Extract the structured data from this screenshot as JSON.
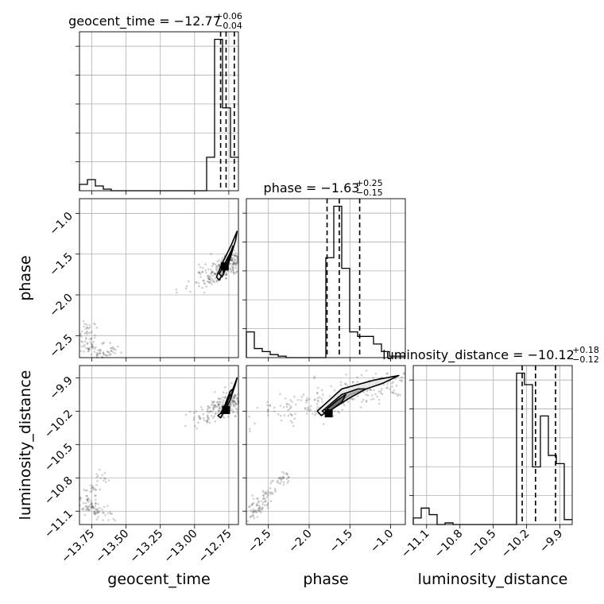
{
  "chart_data": {
    "type": "corner",
    "parameters": [
      "geocent_time",
      "phase",
      "luminosity_distance"
    ],
    "axis_labels": [
      "geocent_time",
      "phase",
      "luminosity_distance"
    ],
    "ranges": {
      "geocent_time": [
        -13.84,
        -12.68
      ],
      "phase": [
        -2.77,
        -0.82
      ],
      "luminosity_distance": [
        -11.22,
        -9.79
      ]
    },
    "ticks": {
      "geocent_time": {
        "values": [
          -13.75,
          -13.5,
          -13.25,
          -13.0,
          -12.75
        ],
        "labels": [
          "−13.75",
          "−13.50",
          "−13.25",
          "−13.00",
          "−12.75"
        ]
      },
      "phase": {
        "values": [
          -2.5,
          -2.0,
          -1.5,
          -1.0
        ],
        "labels": [
          "−2.5",
          "−2.0",
          "−1.5",
          "−1.0"
        ]
      },
      "luminosity_distance": {
        "values": [
          -11.1,
          -10.8,
          -10.5,
          -10.2,
          -9.9
        ],
        "labels": [
          "−11.1",
          "−10.8",
          "−10.5",
          "−10.2",
          "−9.9"
        ]
      }
    },
    "titles": {
      "geocent_time": {
        "text": "geocent_time = −12.77",
        "plus": "+0.06",
        "minus": "−0.04"
      },
      "phase": {
        "text": "phase = −1.63",
        "plus": "+0.25",
        "minus": "−0.15"
      },
      "luminosity_distance": {
        "text": "luminosity_distance = −10.12",
        "plus": "+0.18",
        "minus": "−0.12"
      }
    },
    "quantiles": {
      "geocent_time": [
        -12.81,
        -12.77,
        -12.71
      ],
      "phase": [
        -1.78,
        -1.63,
        -1.38
      ],
      "luminosity_distance": [
        -10.24,
        -10.12,
        -9.94
      ]
    },
    "histograms": {
      "geocent_time": {
        "edges": [
          -13.84,
          -13.782,
          -13.724,
          -13.666,
          -13.608,
          -13.55,
          -13.492,
          -13.434,
          -13.376,
          -13.318,
          -13.26,
          -13.202,
          -13.144,
          -13.086,
          -13.028,
          -12.97,
          -12.912,
          -12.854,
          -12.796,
          -12.738,
          -12.68
        ],
        "counts": [
          4,
          7,
          3,
          1,
          0,
          0,
          0,
          0,
          0,
          0,
          0,
          0,
          0,
          0,
          0,
          0,
          21,
          95,
          52,
          21
        ]
      },
      "phase": {
        "edges": [
          -2.77,
          -2.6725,
          -2.575,
          -2.4775,
          -2.38,
          -2.2825,
          -2.185,
          -2.0875,
          -1.99,
          -1.8925,
          -1.795,
          -1.6975,
          -1.6,
          -1.5025,
          -1.405,
          -1.3075,
          -1.21,
          -1.1125,
          -1.015,
          -0.9175,
          -0.82
        ],
        "counts": [
          17,
          6,
          4,
          2,
          1,
          0,
          0,
          0,
          0,
          0,
          66,
          100,
          59,
          17,
          14,
          14,
          9,
          4,
          1,
          1
        ]
      },
      "luminosity_distance": {
        "edges": [
          -11.22,
          -11.1485,
          -11.077,
          -11.0055,
          -10.934,
          -10.8625,
          -10.791,
          -10.7195,
          -10.648,
          -10.5765,
          -10.505,
          -10.4335,
          -10.362,
          -10.2905,
          -10.219,
          -10.1475,
          -10.076,
          -10.0045,
          -9.933,
          -9.8615,
          -9.79
        ],
        "counts": [
          4,
          10,
          6,
          0,
          1,
          0,
          0,
          0,
          0,
          0,
          0,
          0,
          0,
          92,
          85,
          35,
          66,
          42,
          37,
          3
        ]
      }
    },
    "scatter_clusters": [
      {
        "x": "geocent_time",
        "y": "phase",
        "main": {
          "center": [
            -12.78,
            -1.65
          ],
          "direction": [
            0.7,
            0.45
          ],
          "n": 260,
          "spread_along": 0.11,
          "spread_perp": 0.035
        },
        "tail": [
          [
            -13.8,
            -2.65
          ],
          [
            -13.75,
            -2.6
          ],
          [
            -13.7,
            -2.7
          ],
          [
            -13.65,
            -2.72
          ],
          [
            -13.6,
            -2.68
          ],
          [
            -13.78,
            -2.4
          ],
          [
            -13.76,
            -2.5
          ]
        ]
      },
      {
        "x": "geocent_time",
        "y": "luminosity_distance",
        "main": {
          "center": [
            -12.76,
            -10.15
          ],
          "direction": [
            0.75,
            0.3
          ],
          "n": 260,
          "spread_along": 0.11,
          "spread_perp": 0.035
        },
        "tail": [
          [
            -13.8,
            -11.05
          ],
          [
            -13.75,
            -11.08
          ],
          [
            -13.7,
            -11.1
          ],
          [
            -13.65,
            -11.12
          ],
          [
            -13.75,
            -10.9
          ],
          [
            -13.68,
            -10.8
          ],
          [
            -13.78,
            -11.0
          ]
        ]
      },
      {
        "x": "phase",
        "y": "luminosity_distance",
        "main": {
          "center": [
            -1.55,
            -10.05
          ],
          "direction": [
            1.0,
            0.27
          ],
          "n": 300,
          "spread_along": 0.35,
          "spread_perp": 0.05
        },
        "tail": [
          [
            -2.7,
            -11.1
          ],
          [
            -2.6,
            -11.05
          ],
          [
            -2.5,
            -10.95
          ],
          [
            -2.4,
            -10.85
          ],
          [
            -2.3,
            -10.8
          ],
          [
            -2.65,
            -11.12
          ],
          [
            -2.55,
            -11.0
          ]
        ]
      }
    ],
    "contours": [
      {
        "x": "geocent_time",
        "y": "phase",
        "levels": [
          [
            [
              -12.82,
              -1.82
            ],
            [
              -12.75,
              -1.6
            ],
            [
              -12.7,
              -1.33
            ],
            [
              -12.69,
              -1.22
            ],
            [
              -12.73,
              -1.38
            ],
            [
              -12.8,
              -1.62
            ],
            [
              -12.84,
              -1.78
            ]
          ],
          [
            [
              -12.8,
              -1.78
            ],
            [
              -12.75,
              -1.6
            ],
            [
              -12.72,
              -1.4
            ],
            [
              -12.73,
              -1.45
            ],
            [
              -12.78,
              -1.62
            ],
            [
              -12.82,
              -1.74
            ]
          ],
          [
            [
              -12.79,
              -1.72
            ],
            [
              -12.76,
              -1.6
            ],
            [
              -12.74,
              -1.5
            ],
            [
              -12.76,
              -1.55
            ],
            [
              -12.79,
              -1.66
            ]
          ]
        ],
        "peak": [
          -12.78,
          -1.65
        ]
      },
      {
        "x": "geocent_time",
        "y": "luminosity_distance",
        "levels": [
          [
            [
              -12.81,
              -10.26
            ],
            [
              -12.74,
              -10.1
            ],
            [
              -12.7,
              -9.95
            ],
            [
              -12.69,
              -9.9
            ],
            [
              -12.72,
              -10.0
            ],
            [
              -12.79,
              -10.2
            ],
            [
              -12.83,
              -10.24
            ]
          ],
          [
            [
              -12.79,
              -10.22
            ],
            [
              -12.74,
              -10.1
            ],
            [
              -12.72,
              -10.0
            ],
            [
              -12.74,
              -10.02
            ],
            [
              -12.78,
              -10.15
            ],
            [
              -12.81,
              -10.22
            ]
          ],
          [
            [
              -12.78,
              -10.2
            ],
            [
              -12.76,
              -10.12
            ],
            [
              -12.74,
              -10.05
            ],
            [
              -12.76,
              -10.1
            ],
            [
              -12.78,
              -10.18
            ]
          ]
        ],
        "peak": [
          -12.77,
          -10.19
        ]
      },
      {
        "x": "phase",
        "y": "luminosity_distance",
        "levels": [
          [
            [
              -1.85,
              -10.24
            ],
            [
              -1.5,
              -10.05
            ],
            [
              -1.1,
              -9.95
            ],
            [
              -0.9,
              -9.88
            ],
            [
              -1.2,
              -9.92
            ],
            [
              -1.6,
              -10.0
            ],
            [
              -1.9,
              -10.2
            ]
          ],
          [
            [
              -1.8,
              -10.22
            ],
            [
              -1.5,
              -10.08
            ],
            [
              -1.3,
              -10.0
            ],
            [
              -1.4,
              -10.0
            ],
            [
              -1.6,
              -10.05
            ],
            [
              -1.84,
              -10.2
            ]
          ],
          [
            [
              -1.75,
              -10.2
            ],
            [
              -1.6,
              -10.12
            ],
            [
              -1.55,
              -10.05
            ],
            [
              -1.65,
              -10.1
            ],
            [
              -1.78,
              -10.18
            ]
          ]
        ],
        "peak": [
          -1.76,
          -10.22
        ]
      }
    ]
  }
}
